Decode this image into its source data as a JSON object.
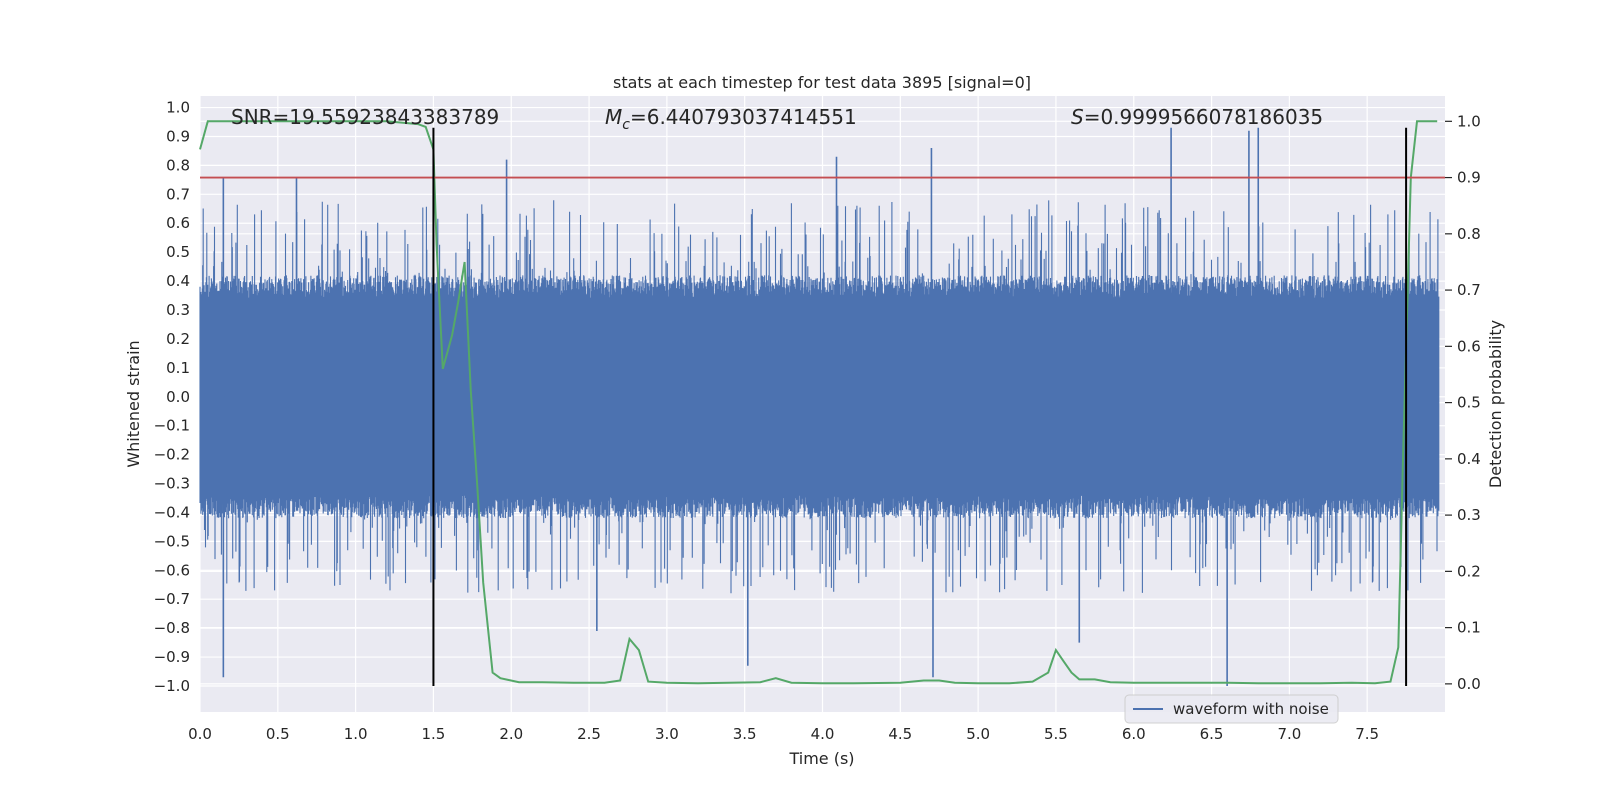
{
  "chart_data": {
    "type": "line",
    "title": "stats at each timestep for test data 3895 [signal=0]",
    "xlabel": "Time (s)",
    "ylabel": "Whitened strain",
    "y2label": "Detection probability",
    "xlim": [
      0.0,
      8.0
    ],
    "ylim": [
      -1.09,
      1.04
    ],
    "y2lim": [
      -0.05,
      1.045
    ],
    "xticks": [
      "0.0",
      "0.5",
      "1.0",
      "1.5",
      "2.0",
      "2.5",
      "3.0",
      "3.5",
      "4.0",
      "4.5",
      "5.0",
      "5.5",
      "6.0",
      "6.5",
      "7.0",
      "7.5"
    ],
    "yticks": [
      "1.0",
      "0.9",
      "0.8",
      "0.7",
      "0.6",
      "0.5",
      "0.4",
      "0.3",
      "0.2",
      "0.1",
      "0.0",
      "-0.1",
      "-0.2",
      "-0.3",
      "-0.4",
      "-0.5",
      "-0.6",
      "-0.7",
      "-0.8",
      "-0.9",
      "-1.0"
    ],
    "y2ticks": [
      "1.0",
      "0.9",
      "0.8",
      "0.7",
      "0.6",
      "0.5",
      "0.4",
      "0.3",
      "0.2",
      "0.1",
      "0.0"
    ],
    "grid": true,
    "legend_position": "bottom-right",
    "annotations": {
      "snr": "SNR=19.55923843383789",
      "mc_symbol": "M",
      "mc_sub": "c",
      "mc_value": "=6.440793037414551",
      "s_symbol": "S",
      "s_value": "=0.9999566078186035"
    },
    "series": [
      {
        "name": "waveform with noise",
        "axis": "left",
        "color": "#4c72b0",
        "style": "dense noise, envelope approx ±0.35 baseline with spikes to ±0.9",
        "peak_spikes": [
          {
            "x": 0.15,
            "y": 0.76
          },
          {
            "x": 0.15,
            "y": -0.97
          },
          {
            "x": 0.62,
            "y": 0.76
          },
          {
            "x": 1.97,
            "y": 0.82
          },
          {
            "x": 2.55,
            "y": -0.81
          },
          {
            "x": 3.52,
            "y": -0.93
          },
          {
            "x": 4.09,
            "y": 0.83
          },
          {
            "x": 4.7,
            "y": 0.86
          },
          {
            "x": 4.71,
            "y": -0.97
          },
          {
            "x": 5.65,
            "y": -0.85
          },
          {
            "x": 6.24,
            "y": 0.93
          },
          {
            "x": 6.6,
            "y": -1.0
          },
          {
            "x": 6.74,
            "y": 0.92
          },
          {
            "x": 6.8,
            "y": 0.93
          }
        ]
      },
      {
        "name": "",
        "axis": "right",
        "color": "#55a868",
        "x": [
          0.0,
          0.05,
          0.2,
          0.4,
          0.6,
          0.8,
          1.0,
          1.2,
          1.4,
          1.45,
          1.5,
          1.52,
          1.56,
          1.62,
          1.66,
          1.7,
          1.74,
          1.78,
          1.82,
          1.88,
          1.93,
          1.98,
          2.05,
          2.2,
          2.4,
          2.6,
          2.7,
          2.76,
          2.82,
          2.88,
          3.0,
          3.2,
          3.4,
          3.6,
          3.7,
          3.8,
          4.0,
          4.2,
          4.5,
          4.65,
          4.75,
          4.85,
          5.0,
          5.2,
          5.35,
          5.45,
          5.5,
          5.55,
          5.6,
          5.65,
          5.75,
          5.85,
          6.0,
          6.2,
          6.4,
          6.6,
          6.8,
          7.0,
          7.2,
          7.4,
          7.55,
          7.65,
          7.7,
          7.73,
          7.78,
          7.82,
          7.86,
          7.9,
          7.95
        ],
        "y": [
          0.95,
          1.0,
          1.0,
          1.0,
          1.0,
          1.0,
          1.0,
          1.0,
          0.995,
          0.99,
          0.95,
          0.78,
          0.56,
          0.62,
          0.68,
          0.75,
          0.52,
          0.36,
          0.18,
          0.02,
          0.01,
          0.007,
          0.003,
          0.003,
          0.002,
          0.002,
          0.006,
          0.08,
          0.06,
          0.004,
          0.002,
          0.001,
          0.002,
          0.003,
          0.01,
          0.002,
          0.001,
          0.001,
          0.002,
          0.006,
          0.006,
          0.002,
          0.001,
          0.001,
          0.004,
          0.02,
          0.06,
          0.04,
          0.02,
          0.008,
          0.008,
          0.003,
          0.002,
          0.002,
          0.002,
          0.002,
          0.001,
          0.001,
          0.001,
          0.002,
          0.001,
          0.004,
          0.065,
          0.4,
          0.9,
          1.0,
          1.0,
          1.0,
          1.0
        ]
      }
    ],
    "hlines": [
      {
        "axis": "right",
        "y": 0.9,
        "color": "#c44e52"
      }
    ],
    "vlines": [
      {
        "x": 1.5,
        "y_from": -1.0,
        "y_to": 0.93
      },
      {
        "x": 7.75,
        "y_from": -1.0,
        "y_to": 0.93
      }
    ]
  }
}
